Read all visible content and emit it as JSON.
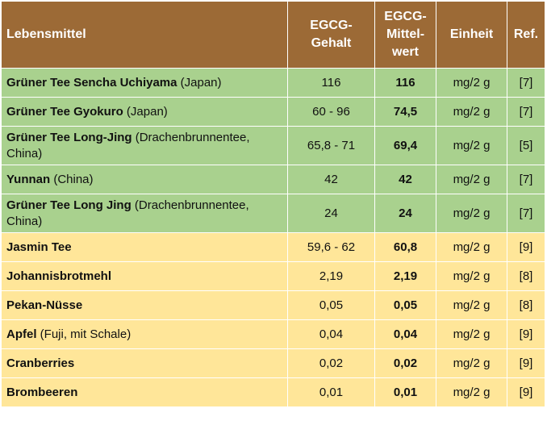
{
  "table": {
    "headers": {
      "food": "Lebensmittel",
      "content": "EGCG-\nGehalt",
      "mean": "EGCG-\nMittel-\nwert",
      "unit": "Einheit",
      "ref": "Ref."
    },
    "colors": {
      "header": "#9c6a36",
      "tea_rows": "#a9d18e",
      "other_rows": "#ffe699"
    },
    "rows": [
      {
        "name": "Grüner Tee Sencha Uchiyama",
        "detail": " (Japan)",
        "content": "116",
        "mean": "116",
        "unit": "mg/2 g",
        "ref": "[7]"
      },
      {
        "name": "Grüner Tee Gyokuro",
        "detail": " (Japan)",
        "content": "60 - 96",
        "mean": "74,5",
        "unit": "mg/2 g",
        "ref": "[7]"
      },
      {
        "name": "Grüner Tee Long-Jing",
        "detail": " (Drachenbrunnentee, China)",
        "content": "65,8 - 71",
        "mean": "69,4",
        "unit": "mg/2 g",
        "ref": "[5]"
      },
      {
        "name": "Yunnan",
        "detail": " (China)",
        "content": "42",
        "mean": "42",
        "unit": "mg/2 g",
        "ref": "[7]"
      },
      {
        "name": "Grüner Tee Long Jing",
        "detail": " (Drachenbrunnentee, China)",
        "content": "24",
        "mean": "24",
        "unit": "mg/2 g",
        "ref": "[7]"
      },
      {
        "name": "Jasmin Tee",
        "detail": "",
        "content": "59,6 - 62",
        "mean": "60,8",
        "unit": "mg/2 g",
        "ref": "[9]"
      },
      {
        "name": "Johannisbrotmehl",
        "detail": "",
        "content": "2,19",
        "mean": "2,19",
        "unit": "mg/2 g",
        "ref": "[8]"
      },
      {
        "name": "Pekan-Nüsse",
        "detail": "",
        "content": "0,05",
        "mean": "0,05",
        "unit": "mg/2 g",
        "ref": "[8]"
      },
      {
        "name": "Apfel",
        "detail": " (Fuji, mit Schale)",
        "content": "0,04",
        "mean": "0,04",
        "unit": "mg/2 g",
        "ref": "[9]"
      },
      {
        "name": "Cranberries",
        "detail": "",
        "content": "0,02",
        "mean": "0,02",
        "unit": "mg/2 g",
        "ref": "[9]"
      },
      {
        "name": "Brombeeren",
        "detail": "",
        "content": "0,01",
        "mean": "0,01",
        "unit": "mg/2 g",
        "ref": "[9]"
      }
    ]
  }
}
